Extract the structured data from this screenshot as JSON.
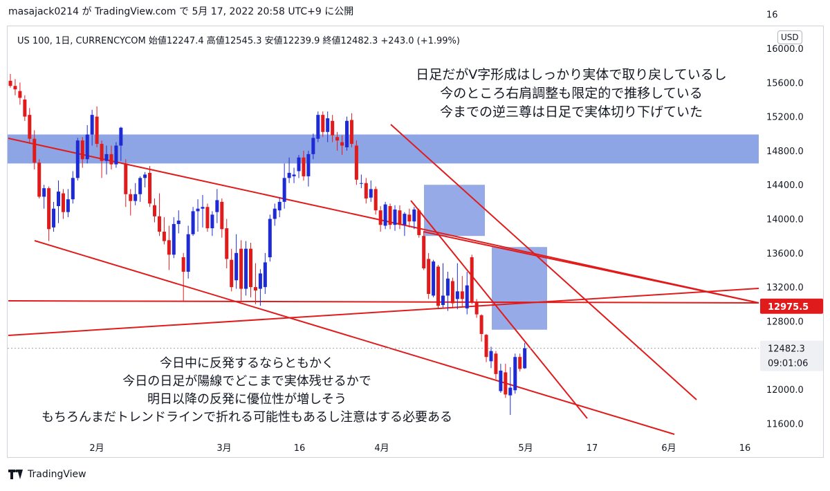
{
  "header": {
    "published_line": "masajack0214 が TradingView.com で 5月 17, 2022 20:58 UTC+9 に公開"
  },
  "ohlc_line": "US 100, 1日, CURRENCYCOM  始値12247.4  高値12545.3  安値12239.9  終値12482.3  +243.0 (+1.99%)",
  "currency_button": "USD",
  "brand": "TradingView",
  "colors": {
    "up": "#1e2ad4",
    "down": "#e01b1b",
    "trendline": "#e01b1b",
    "zone": "#7a95e0"
  },
  "chart_data": {
    "type": "candlestick",
    "title": "US 100, 1日, CURRENCYCOM",
    "ylim": [
      11340,
      16600
    ],
    "y_ticks": [
      11600,
      12000,
      12800,
      13200,
      13600,
      14000,
      14400,
      14800,
      15200,
      15600,
      16000
    ],
    "x_ticks": [
      "2月",
      "3月",
      "16",
      "4月",
      "5月",
      "17",
      "6月",
      "16"
    ],
    "price_labels": [
      {
        "value": "12975.5",
        "kind": "line"
      },
      {
        "value": "12482.3",
        "kind": "last"
      },
      {
        "value": "09:01:06",
        "kind": "countdown"
      }
    ],
    "annotations": [
      {
        "lines": [
          "日足だがV字形成はしっかり実体で取り戻しているし",
          "今のところ右肩調整も限定的で推移している",
          "今までの逆三尊は日足で実体切り下げていた"
        ]
      },
      {
        "lines": [
          "今日中に反発するならともかく",
          "今日の日足が陽線でどこまで実体残せるかで",
          "明日以降の反発に優位性が増しそう",
          "もちろんまだトレンドラインで折れる可能性もあるし注意はする必要ある"
        ]
      }
    ],
    "candles": [
      [
        15620,
        15700,
        15540,
        15560
      ],
      [
        15560,
        15640,
        15450,
        15520
      ],
      [
        15500,
        15600,
        15340,
        15420
      ],
      [
        15400,
        15450,
        15150,
        15200
      ],
      [
        15220,
        15300,
        14880,
        14940
      ],
      [
        14940,
        15040,
        14580,
        14660
      ],
      [
        14660,
        14700,
        14240,
        14260
      ],
      [
        14260,
        14400,
        14120,
        14360
      ],
      [
        14360,
        14380,
        13740,
        13880
      ],
      [
        13900,
        14200,
        13850,
        14120
      ],
      [
        14150,
        14450,
        13950,
        14320
      ],
      [
        14300,
        14350,
        14000,
        14080
      ],
      [
        14080,
        14350,
        14020,
        14230
      ],
      [
        14230,
        14560,
        14180,
        14480
      ],
      [
        14480,
        14950,
        14450,
        14920
      ],
      [
        14920,
        14960,
        14600,
        14700
      ],
      [
        14700,
        15100,
        14650,
        14990
      ],
      [
        14990,
        15280,
        14860,
        15220
      ],
      [
        15200,
        15320,
        14840,
        14880
      ],
      [
        14880,
        14920,
        14480,
        14680
      ],
      [
        14680,
        14860,
        14520,
        14760
      ],
      [
        14760,
        14860,
        14580,
        14640
      ],
      [
        14640,
        14900,
        14600,
        14860
      ],
      [
        14860,
        15080,
        14680,
        15070
      ],
      [
        14640,
        14700,
        14140,
        14290
      ],
      [
        14290,
        14350,
        14040,
        14210
      ],
      [
        14210,
        14420,
        14160,
        14290
      ],
      [
        14290,
        14500,
        14200,
        14480
      ],
      [
        14480,
        14550,
        14370,
        14520
      ],
      [
        14540,
        14620,
        14140,
        14180
      ],
      [
        14160,
        14240,
        13960,
        14030
      ],
      [
        14030,
        14300,
        13800,
        13850
      ],
      [
        13850,
        14020,
        13700,
        13740
      ],
      [
        13750,
        13920,
        13400,
        13580
      ],
      [
        13580,
        14020,
        13540,
        13940
      ],
      [
        13940,
        14100,
        13830,
        13980
      ],
      [
        13550,
        13600,
        13030,
        13380
      ],
      [
        13380,
        13920,
        13300,
        13820
      ],
      [
        13820,
        14140,
        13800,
        14090
      ],
      [
        14090,
        14230,
        13850,
        14120
      ],
      [
        14120,
        14280,
        13900,
        14140
      ],
      [
        14140,
        14180,
        13850,
        13890
      ],
      [
        13890,
        14090,
        13800,
        14050
      ],
      [
        14080,
        14350,
        13950,
        14220
      ],
      [
        14200,
        14240,
        13780,
        13880
      ],
      [
        13890,
        14000,
        13420,
        13530
      ],
      [
        13520,
        13650,
        13150,
        13200
      ],
      [
        13280,
        13820,
        13180,
        13600
      ],
      [
        13650,
        13750,
        13040,
        13180
      ],
      [
        13180,
        13740,
        13100,
        13650
      ],
      [
        13650,
        13720,
        13080,
        13200
      ],
      [
        13200,
        13480,
        13000,
        13160
      ],
      [
        13180,
        13410,
        12980,
        13360
      ],
      [
        13200,
        13600,
        13120,
        13490
      ],
      [
        13550,
        14050,
        13500,
        14000
      ],
      [
        14000,
        14180,
        13920,
        14120
      ],
      [
        14100,
        14250,
        14020,
        14200
      ],
      [
        14200,
        14650,
        14120,
        14480
      ],
      [
        14480,
        14720,
        14420,
        14540
      ],
      [
        14500,
        14600,
        14420,
        14520
      ],
      [
        14560,
        14750,
        14480,
        14720
      ],
      [
        14720,
        14800,
        14450,
        14500
      ],
      [
        14500,
        14800,
        14380,
        14760
      ],
      [
        14760,
        15000,
        14700,
        14950
      ],
      [
        14940,
        15260,
        14900,
        15220
      ],
      [
        15220,
        15260,
        14960,
        15020
      ],
      [
        15020,
        15260,
        14900,
        15180
      ],
      [
        15150,
        15220,
        14900,
        14980
      ],
      [
        14960,
        15020,
        14800,
        14920
      ],
      [
        14900,
        14980,
        14750,
        14860
      ],
      [
        14840,
        15200,
        14800,
        15150
      ],
      [
        15160,
        15240,
        14840,
        14880
      ],
      [
        14860,
        14920,
        14400,
        14460
      ],
      [
        14420,
        14520,
        14360,
        14420
      ],
      [
        14420,
        14480,
        14180,
        14240
      ],
      [
        14250,
        14450,
        14200,
        14350
      ],
      [
        14350,
        14380,
        14050,
        14100
      ],
      [
        14100,
        14150,
        13850,
        13930
      ],
      [
        13920,
        14200,
        13880,
        14170
      ],
      [
        14150,
        14180,
        13880,
        13930
      ],
      [
        13930,
        14160,
        13860,
        14110
      ],
      [
        14100,
        14160,
        13880,
        13930
      ],
      [
        13930,
        14080,
        13800,
        14060
      ],
      [
        14050,
        14120,
        13900,
        13970
      ],
      [
        13970,
        14140,
        13880,
        14110
      ],
      [
        14100,
        14120,
        13780,
        13810
      ],
      [
        13800,
        13850,
        13400,
        13420
      ],
      [
        13530,
        13600,
        13060,
        13120
      ],
      [
        13100,
        13520,
        13080,
        13500
      ],
      [
        13440,
        13460,
        12940,
        12980
      ],
      [
        12990,
        13480,
        12960,
        13100
      ],
      [
        13100,
        13380,
        12920,
        13300
      ],
      [
        13270,
        13310,
        12950,
        13010
      ],
      [
        13060,
        13480,
        12940,
        13150
      ],
      [
        13150,
        13330,
        12960,
        13060
      ],
      [
        12950,
        13380,
        12880,
        13220
      ],
      [
        13550,
        13580,
        13000,
        13030
      ],
      [
        13020,
        13060,
        12840,
        12880
      ],
      [
        12870,
        12880,
        12560,
        12650
      ],
      [
        12640,
        12650,
        12320,
        12380
      ],
      [
        12330,
        12500,
        12250,
        12450
      ],
      [
        12420,
        12450,
        12120,
        12180
      ],
      [
        11980,
        12300,
        11960,
        12220
      ],
      [
        12200,
        12300,
        11900,
        11940
      ],
      [
        11930,
        12260,
        11700,
        12020
      ],
      [
        11990,
        12420,
        11950,
        12380
      ],
      [
        12380,
        12420,
        12210,
        12240
      ],
      [
        12247.4,
        12545.3,
        12239.9,
        12482.3
      ]
    ]
  }
}
